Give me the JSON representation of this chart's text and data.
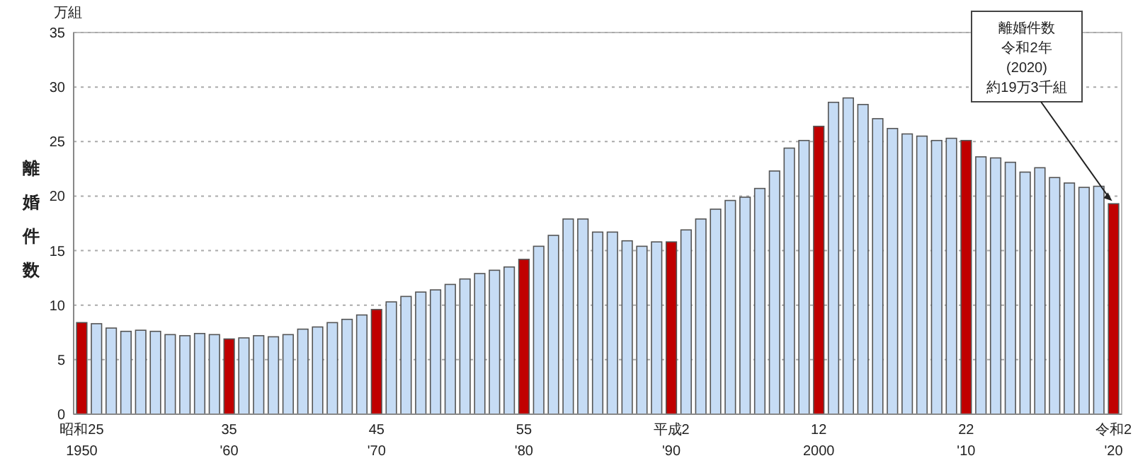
{
  "chart_data": {
    "type": "bar",
    "ylabel": "離婚件数",
    "categories": [
      "昭和25\n1950",
      null,
      null,
      null,
      null,
      null,
      null,
      null,
      null,
      null,
      "35\n'60",
      null,
      null,
      null,
      null,
      null,
      null,
      null,
      null,
      null,
      "45\n'70",
      null,
      null,
      null,
      null,
      null,
      null,
      null,
      null,
      null,
      "55\n'80",
      null,
      null,
      null,
      null,
      null,
      null,
      null,
      null,
      null,
      "平成2\n'90",
      null,
      null,
      null,
      null,
      null,
      null,
      null,
      null,
      null,
      "12\n2000",
      null,
      null,
      null,
      null,
      null,
      null,
      null,
      null,
      null,
      "22\n'10",
      null,
      null,
      null,
      null,
      null,
      null,
      null,
      null,
      null,
      "令和2\n'20"
    ],
    "values": [
      8.4,
      8.3,
      7.9,
      7.6,
      7.7,
      7.6,
      7.3,
      7.2,
      7.4,
      7.3,
      6.9,
      7.0,
      7.2,
      7.1,
      7.3,
      7.8,
      8.0,
      8.4,
      8.7,
      9.1,
      9.6,
      10.3,
      10.8,
      11.2,
      11.4,
      11.9,
      12.4,
      12.9,
      13.2,
      13.5,
      14.2,
      15.4,
      16.4,
      17.9,
      17.9,
      16.7,
      16.7,
      15.9,
      15.4,
      15.8,
      15.8,
      16.9,
      17.9,
      18.8,
      19.6,
      19.9,
      20.7,
      22.3,
      24.4,
      25.1,
      26.4,
      28.6,
      29.0,
      28.4,
      27.1,
      26.2,
      25.7,
      25.5,
      25.1,
      25.3,
      25.1,
      23.6,
      23.5,
      23.1,
      22.2,
      22.6,
      21.7,
      21.2,
      20.8,
      20.9,
      19.3
    ],
    "colors": [
      "#c00000",
      "#c6dcf5",
      "#c6dcf5",
      "#c6dcf5",
      "#c6dcf5",
      "#c6dcf5",
      "#c6dcf5",
      "#c6dcf5",
      "#c6dcf5",
      "#c6dcf5",
      "#c00000",
      "#c6dcf5",
      "#c6dcf5",
      "#c6dcf5",
      "#c6dcf5",
      "#c6dcf5",
      "#c6dcf5",
      "#c6dcf5",
      "#c6dcf5",
      "#c6dcf5",
      "#c00000",
      "#c6dcf5",
      "#c6dcf5",
      "#c6dcf5",
      "#c6dcf5",
      "#c6dcf5",
      "#c6dcf5",
      "#c6dcf5",
      "#c6dcf5",
      "#c6dcf5",
      "#c00000",
      "#c6dcf5",
      "#c6dcf5",
      "#c6dcf5",
      "#c6dcf5",
      "#c6dcf5",
      "#c6dcf5",
      "#c6dcf5",
      "#c6dcf5",
      "#c6dcf5",
      "#c00000",
      "#c6dcf5",
      "#c6dcf5",
      "#c6dcf5",
      "#c6dcf5",
      "#c6dcf5",
      "#c6dcf5",
      "#c6dcf5",
      "#c6dcf5",
      "#c6dcf5",
      "#c00000",
      "#c6dcf5",
      "#c6dcf5",
      "#c6dcf5",
      "#c6dcf5",
      "#c6dcf5",
      "#c6dcf5",
      "#c6dcf5",
      "#c6dcf5",
      "#c6dcf5",
      "#c00000",
      "#c6dcf5",
      "#c6dcf5",
      "#c6dcf5",
      "#c6dcf5",
      "#c6dcf5",
      "#c6dcf5",
      "#c6dcf5",
      "#c6dcf5",
      "#c6dcf5",
      "#c00000"
    ],
    "ylim": [
      0,
      35
    ],
    "yticks": [
      0,
      5,
      10,
      15,
      20,
      25,
      30,
      35
    ],
    "grid": "y",
    "annotations": [
      "万組",
      "離婚件数",
      "令和2年",
      "(2020)",
      {
        "text": "約19万3千組",
        "x": "令和2\n'20",
        "y": 19.3
      }
    ]
  }
}
